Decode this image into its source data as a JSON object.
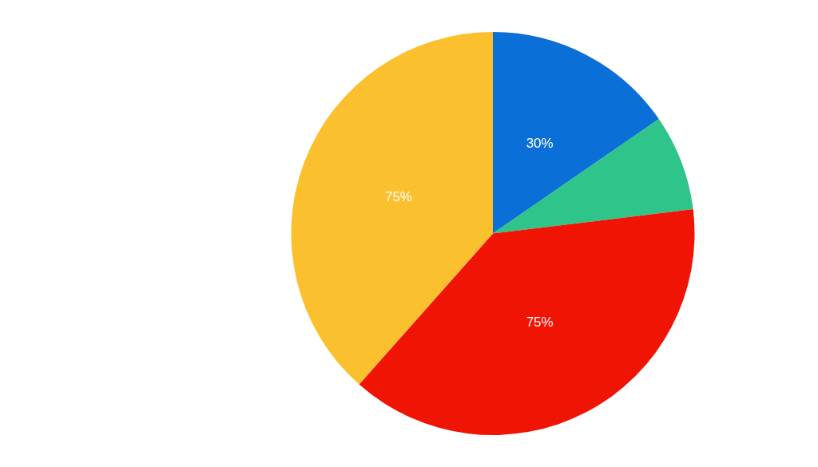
{
  "chart_data": {
    "type": "pie",
    "categories": [
      null,
      null,
      null,
      null
    ],
    "values": [
      30,
      15,
      75,
      75
    ],
    "colors": [
      "#0a6fd6",
      "#2ec48a",
      "#f01405",
      "#fbc02d"
    ],
    "value_labels": [
      "30%",
      null,
      "75%",
      "75%"
    ]
  }
}
